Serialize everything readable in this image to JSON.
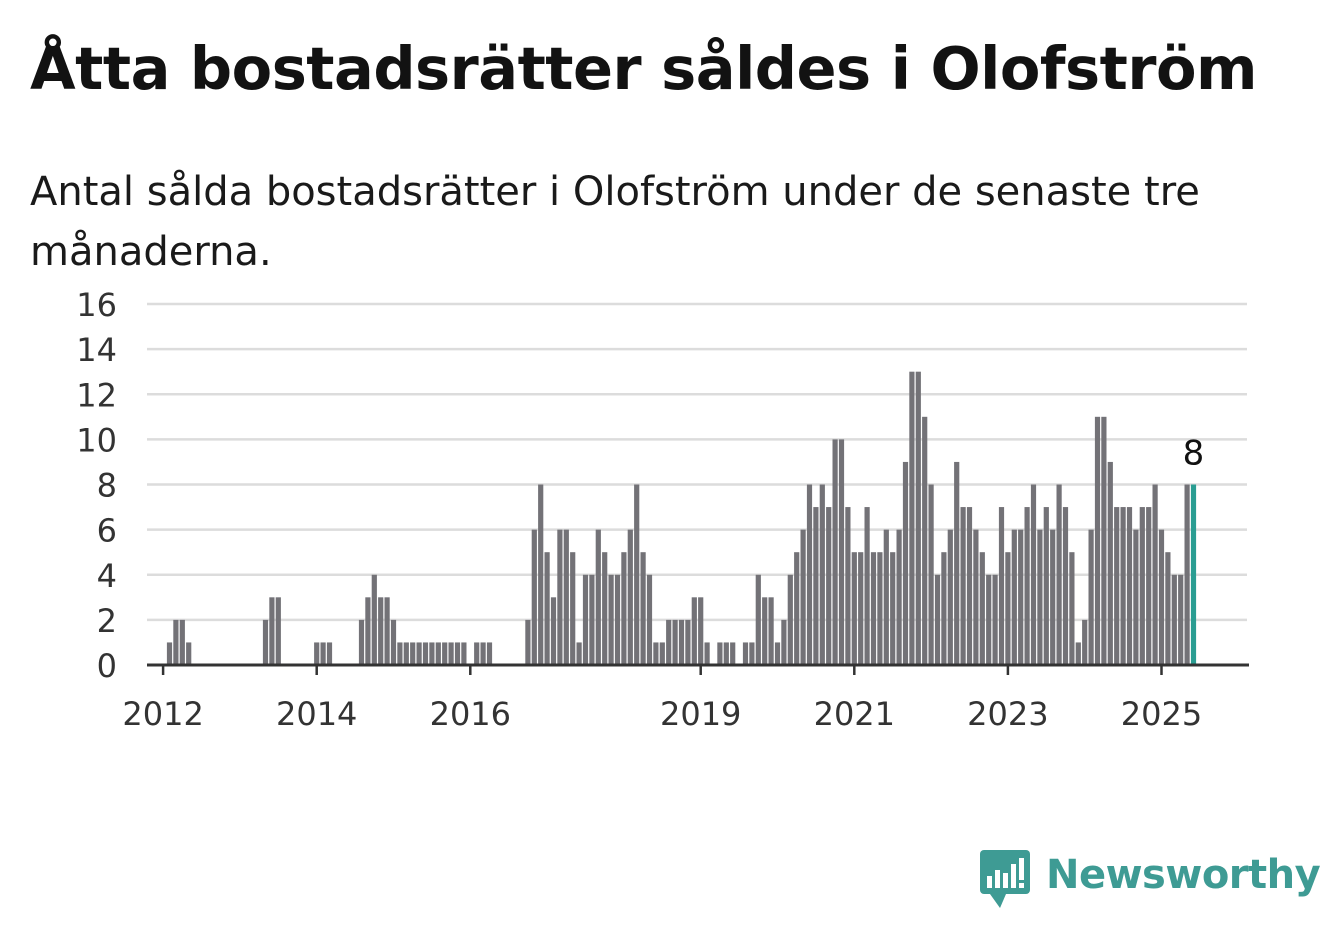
{
  "header": {
    "title": "Åtta bostadsrätter såldes i Olofström",
    "subtitle": "Antal sålda bostadsrätter i Olofström under de senaste tre månaderna."
  },
  "brand": {
    "name": "Newsworthy",
    "icon": "newsworthy-logo-icon",
    "color": "#3e9b94"
  },
  "chart_data": {
    "type": "bar",
    "start": "2011-06",
    "end": "2025-01",
    "x_ticks": [
      "2012",
      "2014",
      "2016",
      "2019",
      "2021",
      "2023",
      "2025"
    ],
    "y_ticks": [
      0,
      2,
      4,
      6,
      8,
      10,
      12,
      14,
      16
    ],
    "ylim": [
      0,
      16
    ],
    "values": [
      0,
      0,
      0,
      0,
      0,
      0,
      0,
      0,
      1,
      2,
      2,
      1,
      0,
      0,
      0,
      0,
      0,
      0,
      0,
      0,
      0,
      0,
      0,
      2,
      3,
      3,
      0,
      0,
      0,
      0,
      0,
      1,
      1,
      1,
      0,
      0,
      0,
      0,
      2,
      3,
      4,
      3,
      3,
      2,
      1,
      1,
      1,
      1,
      1,
      1,
      1,
      1,
      1,
      1,
      1,
      0,
      1,
      1,
      1,
      0,
      0,
      0,
      0,
      0,
      2,
      6,
      8,
      5,
      3,
      6,
      6,
      5,
      1,
      4,
      4,
      6,
      5,
      4,
      4,
      5,
      6,
      8,
      5,
      4,
      1,
      1,
      2,
      2,
      2,
      2,
      3,
      3,
      1,
      0,
      1,
      1,
      1,
      0,
      1,
      1,
      4,
      3,
      3,
      1,
      2,
      4,
      5,
      6,
      8,
      7,
      8,
      7,
      10,
      10,
      7,
      5,
      5,
      7,
      5,
      5,
      6,
      5,
      6,
      9,
      13,
      13,
      11,
      8,
      4,
      5,
      6,
      9,
      7,
      7,
      6,
      5,
      4,
      4,
      7,
      5,
      6,
      6,
      7,
      8,
      6,
      7,
      6,
      8,
      7,
      5,
      1,
      2,
      6,
      11,
      11,
      9,
      7,
      7,
      7,
      6,
      7,
      7,
      8,
      6,
      5,
      4,
      4,
      8,
      8
    ],
    "bar_color": "#737277",
    "highlight_color": "#2a9d92",
    "highlight_label": "8",
    "grid": true,
    "legend": "none"
  }
}
